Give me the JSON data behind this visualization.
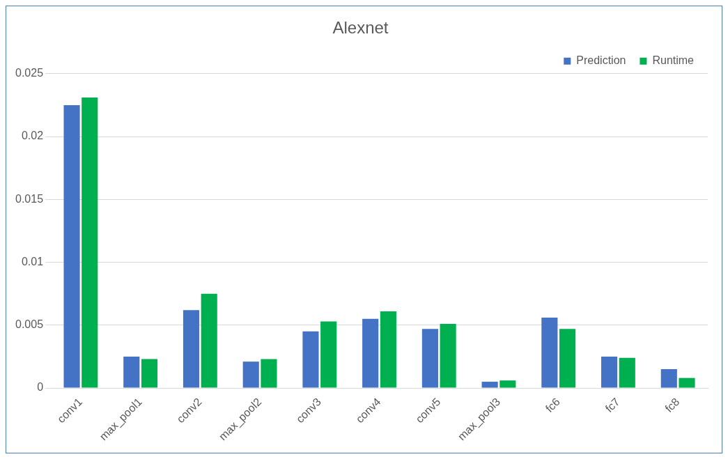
{
  "chart_data": {
    "type": "bar",
    "title": "Alexnet",
    "categories": [
      "conv1",
      "max_pool1",
      "conv2",
      "max_pool2",
      "conv3",
      "conv4",
      "conv5",
      "max_pool3",
      "fc6",
      "fc7",
      "fc8"
    ],
    "series": [
      {
        "name": "Prediction",
        "color": "#4472c4",
        "values": [
          0.0225,
          0.0025,
          0.0062,
          0.0021,
          0.0045,
          0.0055,
          0.0047,
          0.0005,
          0.0056,
          0.0025,
          0.0015
        ]
      },
      {
        "name": "Runtime",
        "color": "#00b050",
        "values": [
          0.0231,
          0.0023,
          0.0075,
          0.0023,
          0.0053,
          0.0061,
          0.0051,
          0.0006,
          0.0047,
          0.0024,
          0.0008
        ]
      }
    ],
    "ylim": [
      0,
      0.025
    ],
    "yticks": [
      0,
      0.005,
      0.01,
      0.015,
      0.02,
      0.025
    ],
    "grid": "y",
    "legend": "top right"
  }
}
